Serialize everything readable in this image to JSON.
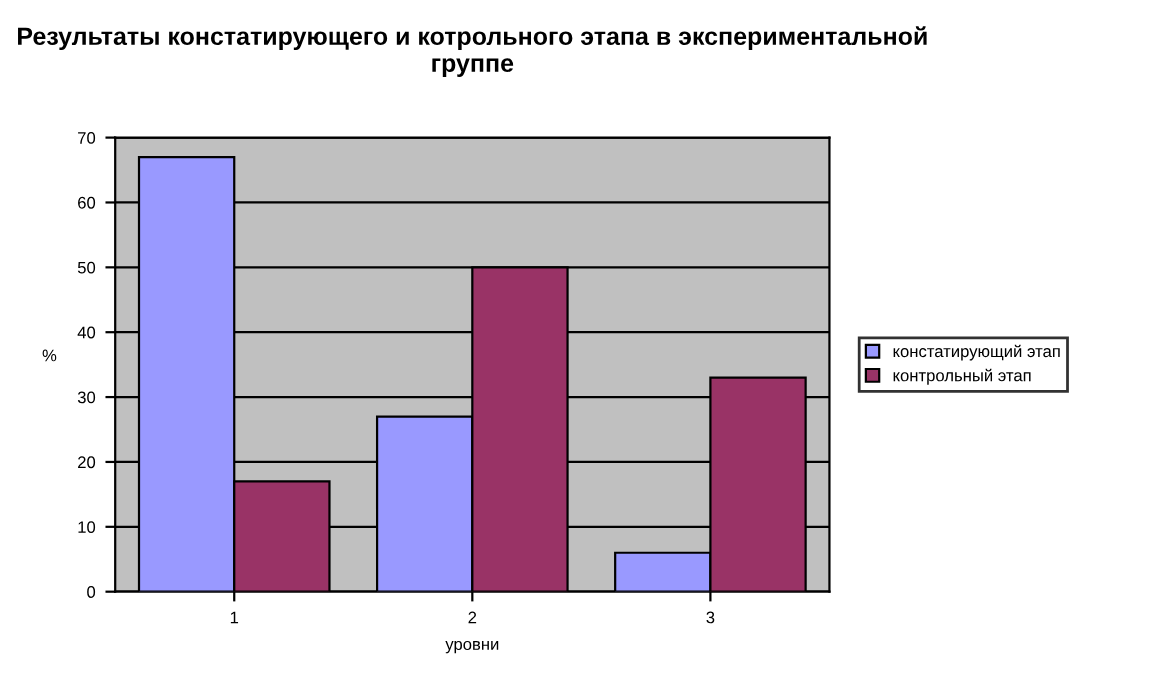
{
  "chart_data": {
    "type": "bar",
    "title": "Результаты констатирующего и котрольного этапа в экспериментальной группе",
    "xlabel": "уровни",
    "ylabel": "%",
    "categories": [
      "1",
      "2",
      "3"
    ],
    "series": [
      {
        "name": "констатирующий этап",
        "color": "#9999ff",
        "values": [
          67,
          27,
          6
        ]
      },
      {
        "name": "контрольный этап",
        "color": "#993366",
        "values": [
          17,
          50,
          33
        ]
      }
    ],
    "ylim": [
      0,
      70
    ],
    "yticks": [
      0,
      10,
      20,
      30,
      40,
      50,
      60,
      70
    ],
    "grid": "y",
    "legend": "right"
  }
}
